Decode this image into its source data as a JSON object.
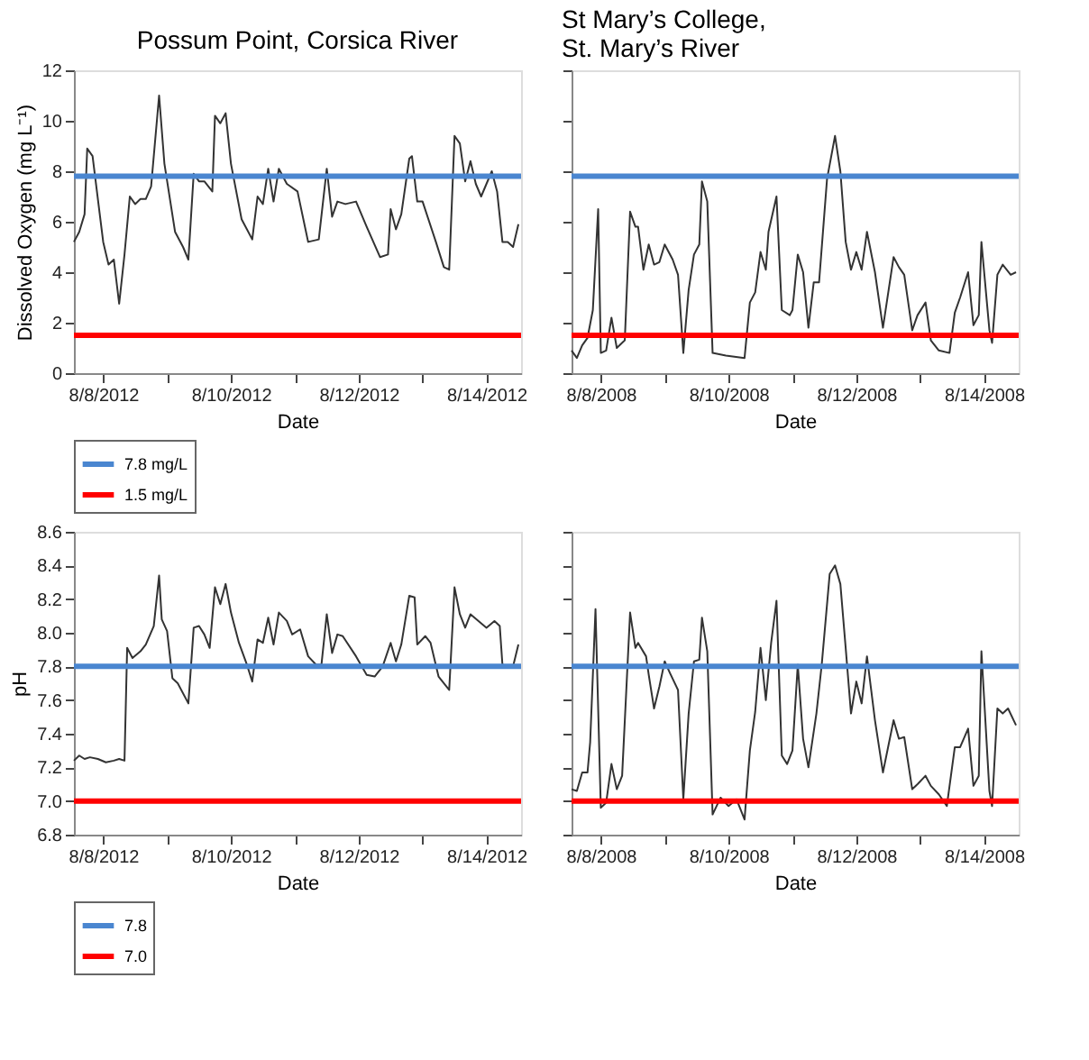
{
  "chart_data": [
    {
      "type": "line",
      "title": "Possum Point, Corsica River",
      "xlabel": "Date",
      "ylabel": "Dissolved Oxygen (mg L⁻¹)",
      "xlim": [
        "2012-08-07T13:00",
        "2012-08-14T13:00"
      ],
      "ylim": [
        0,
        12
      ],
      "yticks": [
        0,
        2,
        4,
        6,
        8,
        10,
        12
      ],
      "xticks": [
        {
          "value": "2012-08-08T00:00",
          "label": "8/8/2012"
        },
        {
          "value": "2012-08-09T00:00",
          "label": null
        },
        {
          "value": "2012-08-10T00:00",
          "label": "8/10/2012"
        },
        {
          "value": "2012-08-11T00:00",
          "label": null
        },
        {
          "value": "2012-08-12T00:00",
          "label": "8/12/2012"
        },
        {
          "value": "2012-08-13T00:00",
          "label": null
        },
        {
          "value": "2012-08-14T00:00",
          "label": "8/14/2012"
        }
      ],
      "x": [
        "2012-08-07T13:00",
        "2012-08-07T15:00",
        "2012-08-07T17:00",
        "2012-08-07T18:00",
        "2012-08-07T20:00",
        "2012-08-07T22:00",
        "2012-08-08T00:00",
        "2012-08-08T02:00",
        "2012-08-08T04:00",
        "2012-08-08T06:00",
        "2012-08-08T08:00",
        "2012-08-08T10:00",
        "2012-08-08T12:00",
        "2012-08-08T14:00",
        "2012-08-08T16:00",
        "2012-08-08T18:00",
        "2012-08-08T21:00",
        "2012-08-08T23:00",
        "2012-08-09T03:00",
        "2012-08-09T06:00",
        "2012-08-09T08:00",
        "2012-08-09T10:00",
        "2012-08-09T12:00",
        "2012-08-09T14:00",
        "2012-08-09T17:00",
        "2012-08-09T18:00",
        "2012-08-09T20:00",
        "2012-08-09T22:00",
        "2012-08-10T00:00",
        "2012-08-10T04:00",
        "2012-08-10T08:00",
        "2012-08-10T10:00",
        "2012-08-10T12:00",
        "2012-08-10T14:00",
        "2012-08-10T16:00",
        "2012-08-10T18:00",
        "2012-08-10T21:00",
        "2012-08-11T01:00",
        "2012-08-11T05:00",
        "2012-08-11T09:00",
        "2012-08-11T12:00",
        "2012-08-11T14:00",
        "2012-08-11T16:00",
        "2012-08-11T19:00",
        "2012-08-11T23:00",
        "2012-08-12T03:00",
        "2012-08-12T08:00",
        "2012-08-12T11:00",
        "2012-08-12T12:00",
        "2012-08-12T14:00",
        "2012-08-12T16:00",
        "2012-08-12T19:00",
        "2012-08-12T20:00",
        "2012-08-12T22:00",
        "2012-08-13T00:00",
        "2012-08-13T05:00",
        "2012-08-13T08:00",
        "2012-08-13T10:00",
        "2012-08-13T12:00",
        "2012-08-13T14:00",
        "2012-08-13T16:00",
        "2012-08-13T18:00",
        "2012-08-13T20:00",
        "2012-08-13T22:00",
        "2012-08-14T02:00",
        "2012-08-14T04:00",
        "2012-08-14T06:00",
        "2012-08-14T08:00",
        "2012-08-14T10:00",
        "2012-08-14T12:00"
      ],
      "series": [
        {
          "color": "#333333",
          "values": [
            5.2,
            5.6,
            6.3,
            8.9,
            8.6,
            6.9,
            5.2,
            4.3,
            4.5,
            2.75,
            4.7,
            7.0,
            6.7,
            6.9,
            6.9,
            7.4,
            11.0,
            8.3,
            5.6,
            5.0,
            4.5,
            7.9,
            7.6,
            7.6,
            7.2,
            10.2,
            9.9,
            10.3,
            8.3,
            6.1,
            5.3,
            7.0,
            6.7,
            8.1,
            6.8,
            8.1,
            7.5,
            7.2,
            5.2,
            5.3,
            8.1,
            6.2,
            6.8,
            6.7,
            6.8,
            5.8,
            4.6,
            4.7,
            6.5,
            5.7,
            6.3,
            8.5,
            8.6,
            6.8,
            6.8,
            5.2,
            4.2,
            4.1,
            9.4,
            9.1,
            7.6,
            8.4,
            7.5,
            7.0,
            8.0,
            7.2,
            5.2,
            5.2,
            5.0,
            5.9
          ]
        }
      ],
      "ref_lines": [
        {
          "axis": "y",
          "value": 7.8,
          "label": "7.8 mg/L",
          "color": "#4a86d0"
        },
        {
          "axis": "y",
          "value": 1.5,
          "label": "1.5 mg/L",
          "color": "#ff0000"
        }
      ],
      "legend": "bottom"
    },
    {
      "type": "line",
      "title": "St Mary’s College,\nSt. Mary’s River",
      "xlabel": "Date",
      "xlim": [
        "2008-08-07T13:00",
        "2008-08-14T13:00"
      ],
      "ylim": [
        0,
        12
      ],
      "yticks": [
        {
          "value": 0,
          "label": null
        },
        {
          "value": 2,
          "label": null
        },
        {
          "value": 4,
          "label": null
        },
        {
          "value": 6,
          "label": null
        },
        {
          "value": 8,
          "label": null
        },
        {
          "value": 10,
          "label": null
        },
        {
          "value": 12,
          "label": null
        }
      ],
      "tick_labels": "x",
      "xticks": [
        {
          "value": "2008-08-08T00:00",
          "label": "8/8/2008"
        },
        {
          "value": "2008-08-09T00:00",
          "label": null
        },
        {
          "value": "2008-08-10T00:00",
          "label": "8/10/2008"
        },
        {
          "value": "2008-08-11T00:00",
          "label": null
        },
        {
          "value": "2008-08-12T00:00",
          "label": "8/12/2008"
        },
        {
          "value": "2008-08-13T00:00",
          "label": null
        },
        {
          "value": "2008-08-14T00:00",
          "label": "8/14/2008"
        }
      ],
      "x": [
        "2008-08-07T13:00",
        "2008-08-07T15:00",
        "2008-08-07T17:00",
        "2008-08-07T19:00",
        "2008-08-07T21:00",
        "2008-08-07T23:00",
        "2008-08-08T00:00",
        "2008-08-08T02:00",
        "2008-08-08T04:00",
        "2008-08-08T06:00",
        "2008-08-08T09:00",
        "2008-08-08T11:00",
        "2008-08-08T13:00",
        "2008-08-08T14:00",
        "2008-08-08T16:00",
        "2008-08-08T18:00",
        "2008-08-08T20:00",
        "2008-08-08T22:00",
        "2008-08-09T00:00",
        "2008-08-09T03:00",
        "2008-08-09T05:00",
        "2008-08-09T07:00",
        "2008-08-09T09:00",
        "2008-08-09T11:00",
        "2008-08-09T13:00",
        "2008-08-09T14:00",
        "2008-08-09T16:00",
        "2008-08-09T18:00",
        "2008-08-09T23:00",
        "2008-08-10T06:00",
        "2008-08-10T08:00",
        "2008-08-10T10:00",
        "2008-08-10T12:00",
        "2008-08-10T14:00",
        "2008-08-10T15:00",
        "2008-08-10T18:00",
        "2008-08-10T20:00",
        "2008-08-10T23:00",
        "2008-08-11T00:00",
        "2008-08-11T02:00",
        "2008-08-11T04:00",
        "2008-08-11T06:00",
        "2008-08-11T08:00",
        "2008-08-11T10:00",
        "2008-08-11T13:00",
        "2008-08-11T16:00",
        "2008-08-11T18:00",
        "2008-08-11T20:00",
        "2008-08-11T22:00",
        "2008-08-12T00:00",
        "2008-08-12T02:00",
        "2008-08-12T04:00",
        "2008-08-12T07:00",
        "2008-08-12T10:00",
        "2008-08-12T14:00",
        "2008-08-12T16:00",
        "2008-08-12T18:00",
        "2008-08-12T21:00",
        "2008-08-12T23:00",
        "2008-08-13T02:00",
        "2008-08-13T04:00",
        "2008-08-13T07:00",
        "2008-08-13T11:00",
        "2008-08-13T13:00",
        "2008-08-13T15:00",
        "2008-08-13T18:00",
        "2008-08-13T20:00",
        "2008-08-13T22:00",
        "2008-08-13T23:00",
        "2008-08-14T02:00",
        "2008-08-14T03:00",
        "2008-08-14T05:00",
        "2008-08-14T07:00",
        "2008-08-14T10:00",
        "2008-08-14T12:00"
      ],
      "series": [
        {
          "color": "#333333",
          "values": [
            0.9,
            0.6,
            1.1,
            1.4,
            2.5,
            6.5,
            0.8,
            0.9,
            2.2,
            1.0,
            1.3,
            6.4,
            5.8,
            5.8,
            4.1,
            5.1,
            4.3,
            4.4,
            5.1,
            4.5,
            3.9,
            0.8,
            3.3,
            4.7,
            5.1,
            7.6,
            6.8,
            0.8,
            0.7,
            0.6,
            2.8,
            3.2,
            4.8,
            4.1,
            5.6,
            7.0,
            2.5,
            2.3,
            2.5,
            4.7,
            4.0,
            1.8,
            3.6,
            3.6,
            7.7,
            9.4,
            8.0,
            5.2,
            4.1,
            4.8,
            4.1,
            5.6,
            4.0,
            1.8,
            4.6,
            4.2,
            3.9,
            1.7,
            2.3,
            2.8,
            1.3,
            0.9,
            0.8,
            2.4,
            3.0,
            4.0,
            1.9,
            2.3,
            5.2,
            1.7,
            1.2,
            3.9,
            4.3,
            3.9,
            4.0
          ]
        }
      ],
      "ref_lines": [
        {
          "axis": "y",
          "value": 7.8,
          "color": "#4a86d0"
        },
        {
          "axis": "y",
          "value": 1.5,
          "color": "#ff0000"
        }
      ]
    },
    {
      "type": "line",
      "xlabel": "Date",
      "ylabel": "pH",
      "xlim": [
        "2012-08-07T13:00",
        "2012-08-14T13:00"
      ],
      "ylim": [
        6.8,
        8.6
      ],
      "yticks": [
        {
          "value": 6.8,
          "label": "6.8"
        },
        {
          "value": 7,
          "label": "7.0"
        },
        {
          "value": 7.2,
          "label": "7.2"
        },
        {
          "value": 7.4,
          "label": "7.4"
        },
        {
          "value": 7.6,
          "label": "7.6"
        },
        {
          "value": 7.8,
          "label": "7.8"
        },
        {
          "value": 8,
          "label": "8.0"
        },
        {
          "value": 8.2,
          "label": "8.2"
        },
        {
          "value": 8.4,
          "label": "8.4"
        },
        {
          "value": 8.6,
          "label": "8.6"
        }
      ],
      "xticks": [
        {
          "value": "2012-08-08T00:00",
          "label": "8/8/2012"
        },
        {
          "value": "2012-08-09T00:00",
          "label": null
        },
        {
          "value": "2012-08-10T00:00",
          "label": "8/10/2012"
        },
        {
          "value": "2012-08-11T00:00",
          "label": null
        },
        {
          "value": "2012-08-12T00:00",
          "label": "8/12/2012"
        },
        {
          "value": "2012-08-13T00:00",
          "label": null
        },
        {
          "value": "2012-08-14T00:00",
          "label": "8/14/2012"
        }
      ],
      "x": [
        "2012-08-07T13:00",
        "2012-08-07T15:00",
        "2012-08-07T17:00",
        "2012-08-07T19:00",
        "2012-08-07T22:00",
        "2012-08-08T01:00",
        "2012-08-08T04:00",
        "2012-08-08T06:00",
        "2012-08-08T08:00",
        "2012-08-08T09:00",
        "2012-08-08T11:00",
        "2012-08-08T14:00",
        "2012-08-08T16:00",
        "2012-08-08T19:00",
        "2012-08-08T21:00",
        "2012-08-08T22:00",
        "2012-08-09T00:00",
        "2012-08-09T02:00",
        "2012-08-09T04:00",
        "2012-08-09T08:00",
        "2012-08-09T10:00",
        "2012-08-09T12:00",
        "2012-08-09T14:00",
        "2012-08-09T16:00",
        "2012-08-09T18:00",
        "2012-08-09T20:00",
        "2012-08-09T22:00",
        "2012-08-10T00:00",
        "2012-08-10T03:00",
        "2012-08-10T06:00",
        "2012-08-10T08:00",
        "2012-08-10T10:00",
        "2012-08-10T12:00",
        "2012-08-10T14:00",
        "2012-08-10T16:00",
        "2012-08-10T18:00",
        "2012-08-10T21:00",
        "2012-08-10T23:00",
        "2012-08-11T02:00",
        "2012-08-11T05:00",
        "2012-08-11T08:00",
        "2012-08-11T10:00",
        "2012-08-11T12:00",
        "2012-08-11T14:00",
        "2012-08-11T16:00",
        "2012-08-11T18:00",
        "2012-08-11T23:00",
        "2012-08-12T03:00",
        "2012-08-12T06:00",
        "2012-08-12T09:00",
        "2012-08-12T12:00",
        "2012-08-12T14:00",
        "2012-08-12T16:00",
        "2012-08-12T19:00",
        "2012-08-12T21:00",
        "2012-08-12T22:00",
        "2012-08-13T01:00",
        "2012-08-13T03:00",
        "2012-08-13T06:00",
        "2012-08-13T10:00",
        "2012-08-13T12:00",
        "2012-08-13T14:00",
        "2012-08-13T16:00",
        "2012-08-13T18:00",
        "2012-08-13T21:00",
        "2012-08-14T00:00",
        "2012-08-14T03:00",
        "2012-08-14T05:00",
        "2012-08-14T06:00",
        "2012-08-14T08:00",
        "2012-08-14T10:00",
        "2012-08-14T12:00"
      ],
      "series": [
        {
          "color": "#333333",
          "values": [
            7.24,
            7.27,
            7.25,
            7.26,
            7.25,
            7.23,
            7.24,
            7.25,
            7.24,
            7.91,
            7.85,
            7.89,
            7.93,
            8.04,
            8.34,
            8.08,
            8.01,
            7.73,
            7.7,
            7.58,
            8.03,
            8.04,
            7.99,
            7.91,
            8.27,
            8.17,
            8.29,
            8.12,
            7.94,
            7.81,
            7.71,
            7.96,
            7.94,
            8.09,
            7.93,
            8.12,
            8.07,
            7.99,
            8.02,
            7.86,
            7.81,
            7.81,
            8.11,
            7.88,
            7.99,
            7.98,
            7.86,
            7.75,
            7.74,
            7.8,
            7.94,
            7.83,
            7.93,
            8.22,
            8.21,
            7.93,
            7.98,
            7.94,
            7.74,
            7.66,
            8.27,
            8.11,
            8.03,
            8.11,
            8.07,
            8.03,
            8.07,
            8.04,
            7.81,
            7.8,
            7.8,
            7.93
          ]
        }
      ],
      "ref_lines": [
        {
          "axis": "y",
          "value": 7.8,
          "label": "7.8",
          "color": "#4a86d0"
        },
        {
          "axis": "y",
          "value": 7.0,
          "label": "7.0",
          "color": "#ff0000"
        }
      ],
      "legend": "bottom"
    },
    {
      "type": "line",
      "xlabel": "Date",
      "xlim": [
        "2008-08-07T13:00",
        "2008-08-14T13:00"
      ],
      "ylim": [
        6.8,
        8.6
      ],
      "tick_labels": "x",
      "yticks": [
        {
          "value": 6.8,
          "label": null
        },
        {
          "value": 7,
          "label": null
        },
        {
          "value": 7.2,
          "label": null
        },
        {
          "value": 7.4,
          "label": null
        },
        {
          "value": 7.6,
          "label": null
        },
        {
          "value": 7.8,
          "label": null
        },
        {
          "value": 8,
          "label": null
        },
        {
          "value": 8.2,
          "label": null
        },
        {
          "value": 8.4,
          "label": null
        },
        {
          "value": 8.6,
          "label": null
        }
      ],
      "xticks": [
        {
          "value": "2008-08-08T00:00",
          "label": "8/8/2008"
        },
        {
          "value": "2008-08-09T00:00",
          "label": null
        },
        {
          "value": "2008-08-10T00:00",
          "label": "8/10/2008"
        },
        {
          "value": "2008-08-11T00:00",
          "label": null
        },
        {
          "value": "2008-08-12T00:00",
          "label": "8/12/2008"
        },
        {
          "value": "2008-08-13T00:00",
          "label": null
        },
        {
          "value": "2008-08-14T00:00",
          "label": "8/14/2008"
        }
      ],
      "x": [
        "2008-08-07T13:00",
        "2008-08-07T15:00",
        "2008-08-07T17:00",
        "2008-08-07T19:00",
        "2008-08-07T20:00",
        "2008-08-07T22:00",
        "2008-08-08T00:00",
        "2008-08-08T02:00",
        "2008-08-08T04:00",
        "2008-08-08T06:00",
        "2008-08-08T08:00",
        "2008-08-08T11:00",
        "2008-08-08T13:00",
        "2008-08-08T14:00",
        "2008-08-08T17:00",
        "2008-08-08T18:00",
        "2008-08-08T20:00",
        "2008-08-08T22:00",
        "2008-08-09T00:00",
        "2008-08-09T02:00",
        "2008-08-09T05:00",
        "2008-08-09T07:00",
        "2008-08-09T09:00",
        "2008-08-09T11:00",
        "2008-08-09T13:00",
        "2008-08-09T14:00",
        "2008-08-09T16:00",
        "2008-08-09T18:00",
        "2008-08-09T21:00",
        "2008-08-10T00:00",
        "2008-08-10T03:00",
        "2008-08-10T06:00",
        "2008-08-10T08:00",
        "2008-08-10T10:00",
        "2008-08-10T12:00",
        "2008-08-10T14:00",
        "2008-08-10T16:00",
        "2008-08-10T18:00",
        "2008-08-10T20:00",
        "2008-08-10T22:00",
        "2008-08-11T00:00",
        "2008-08-11T02:00",
        "2008-08-11T04:00",
        "2008-08-11T06:00",
        "2008-08-11T09:00",
        "2008-08-11T11:00",
        "2008-08-11T14:00",
        "2008-08-11T16:00",
        "2008-08-11T18:00",
        "2008-08-11T20:00",
        "2008-08-11T22:00",
        "2008-08-12T00:00",
        "2008-08-12T02:00",
        "2008-08-12T04:00",
        "2008-08-12T07:00",
        "2008-08-12T10:00",
        "2008-08-12T14:00",
        "2008-08-12T16:00",
        "2008-08-12T18:00",
        "2008-08-12T21:00",
        "2008-08-12T23:00",
        "2008-08-13T02:00",
        "2008-08-13T04:00",
        "2008-08-13T07:00",
        "2008-08-13T10:00",
        "2008-08-13T13:00",
        "2008-08-13T15:00",
        "2008-08-13T18:00",
        "2008-08-13T20:00",
        "2008-08-13T22:00",
        "2008-08-13T23:00",
        "2008-08-14T02:00",
        "2008-08-14T03:00",
        "2008-08-14T05:00",
        "2008-08-14T07:00",
        "2008-08-14T09:00",
        "2008-08-14T12:00"
      ],
      "series": [
        {
          "color": "#333333",
          "values": [
            7.07,
            7.06,
            7.17,
            7.17,
            7.35,
            8.14,
            6.96,
            6.99,
            7.22,
            7.07,
            7.15,
            8.12,
            7.91,
            7.94,
            7.86,
            7.75,
            7.55,
            7.68,
            7.83,
            7.76,
            7.66,
            7.01,
            7.52,
            7.83,
            7.84,
            8.09,
            7.89,
            6.92,
            7.02,
            6.97,
            7.01,
            6.89,
            7.3,
            7.53,
            7.91,
            7.6,
            7.94,
            8.19,
            7.27,
            7.22,
            7.3,
            7.81,
            7.37,
            7.2,
            7.52,
            7.81,
            8.35,
            8.4,
            8.29,
            7.91,
            7.52,
            7.71,
            7.58,
            7.86,
            7.48,
            7.17,
            7.48,
            7.37,
            7.38,
            7.07,
            7.1,
            7.15,
            7.09,
            7.04,
            6.97,
            7.32,
            7.32,
            7.43,
            7.09,
            7.15,
            7.89,
            7.06,
            6.97,
            7.55,
            7.52,
            7.55,
            7.45
          ]
        }
      ],
      "ref_lines": [
        {
          "axis": "y",
          "value": 7.8,
          "color": "#4a86d0"
        },
        {
          "axis": "y",
          "value": 7.0,
          "color": "#ff0000"
        }
      ]
    }
  ]
}
